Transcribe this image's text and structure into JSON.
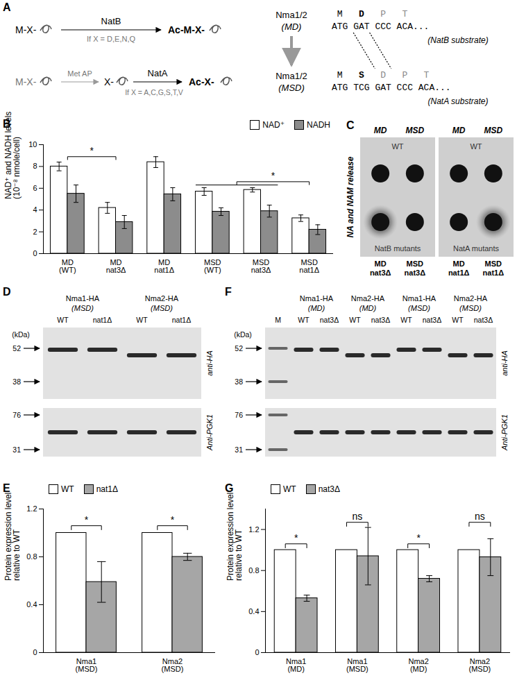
{
  "figure": {
    "A": {
      "label": "A",
      "reactions": [
        {
          "substrate": "M-X-",
          "enzyme": "NatB",
          "condition": "If X = D,E,N,Q",
          "product": "Ac-M-X-"
        },
        {
          "substrate": "M-X-",
          "processing": "Met AP",
          "intermediate": "X-",
          "enzyme": "NatA",
          "condition": "If X = A,C,G,S,T,V",
          "product": "Ac-X-"
        }
      ],
      "constructs": [
        {
          "name": "Nma1/2",
          "variant": "(MD)",
          "residues": [
            "M",
            "D",
            "P",
            "T"
          ],
          "codons": "ATG GAT CCC ACA...",
          "note": "(NatB substrate)"
        },
        {
          "name": "Nma1/2",
          "variant": "(MSD)",
          "residues": [
            "M",
            "S",
            "D",
            "P",
            "T"
          ],
          "codons": "ATG TCG GAT CCC ACA...",
          "note": "(NatA substrate)"
        }
      ]
    },
    "C": {
      "label": "C",
      "ylabel": "NA and NAM release",
      "plates": [
        {
          "columns": [
            "MD",
            "MSD"
          ],
          "top": "WT",
          "bottom": "NatB mutants",
          "bottom_labels": [
            "MD\nnat3Δ",
            "MSD\nnat3Δ"
          ],
          "halo": [
            true,
            false
          ]
        },
        {
          "columns": [
            "MD",
            "MSD"
          ],
          "top": "WT",
          "bottom": "NatA mutants",
          "bottom_labels": [
            "MD\nnat1Δ",
            "MSD\nnat1Δ"
          ],
          "halo": [
            false,
            true
          ]
        }
      ]
    },
    "D": {
      "label": "D",
      "groups": [
        {
          "name": "Nma1-HA",
          "variant": "(MSD)"
        },
        {
          "name": "Nma2-HA",
          "variant": "(MSD)"
        }
      ],
      "lanes": [
        "WT",
        "nat1Δ",
        "WT",
        "nat1Δ"
      ],
      "unit": "(kDa)",
      "markers_top": [
        52,
        38
      ],
      "markers_bottom": [
        76,
        31
      ],
      "antibody_top": "anti-HA",
      "antibody_bottom": "Anti-PGK1"
    },
    "F": {
      "label": "F",
      "marker_lane": "M",
      "groups": [
        {
          "name": "Nma1-HA",
          "variant": "(MD)"
        },
        {
          "name": "Nma2-HA",
          "variant": "(MD)"
        },
        {
          "name": "Nma1-HA",
          "variant": "(MSD)"
        },
        {
          "name": "Nma2-HA",
          "variant": "(MSD)"
        }
      ],
      "lanes": [
        "WT",
        "nat3Δ",
        "WT",
        "nat3Δ",
        "WT",
        "nat3Δ",
        "WT",
        "nat3Δ"
      ],
      "unit": "(kDa)",
      "markers_top": [
        52,
        38
      ],
      "markers_bottom": [
        76,
        31
      ],
      "antibody_top": "anti-HA",
      "antibody_bottom": "Anti-PGK1"
    }
  },
  "chart_data": [
    {
      "type": "bar",
      "title": "B",
      "ylabel": "NAD⁺ and NADH levels\n(10⁻⁸ nmole/cell)",
      "categories": [
        "MD\n(WT)",
        "MD\nnat3Δ",
        "MD\nnat1Δ",
        "MSD\n(WT)",
        "MSD\nnat3Δ",
        "MSD\nnat1Δ"
      ],
      "series": [
        {
          "name": "NAD⁺",
          "color": "#ffffff",
          "values": [
            8.0,
            4.2,
            8.4,
            5.7,
            5.85,
            3.25
          ],
          "errors": [
            0.4,
            0.5,
            0.5,
            0.35,
            0.2,
            0.3
          ]
        },
        {
          "name": "NADH",
          "color": "#8c8c8c",
          "values": [
            5.5,
            2.9,
            5.45,
            3.85,
            3.9,
            2.2
          ],
          "errors": [
            0.8,
            0.6,
            0.6,
            0.35,
            0.55,
            0.45
          ]
        }
      ],
      "ylim": [
        0,
        10
      ],
      "yticks": [
        0,
        2,
        4,
        6,
        8,
        10
      ],
      "legend": "top-right",
      "annotations": [
        {
          "text": "*",
          "left": [
            0
          ],
          "right": [
            1
          ],
          "y": 8.9
        },
        {
          "text": "*",
          "left": [
            3,
            4
          ],
          "right": [
            5
          ],
          "y": 6.6
        }
      ]
    },
    {
      "type": "bar",
      "title": "E",
      "ylabel": "Protein expression level\nrelative to WT",
      "categories": [
        "Nma1\n(MSD)",
        "Nma2\n(MSD)"
      ],
      "series": [
        {
          "name": "WT",
          "color": "#ffffff",
          "values": [
            1,
            1
          ]
        },
        {
          "name": "nat1Δ",
          "color": "#a6a6a6",
          "values": [
            0.59,
            0.8
          ],
          "errors": [
            0.17,
            0.03
          ]
        }
      ],
      "ylim": [
        0,
        1.2
      ],
      "yticks": [
        0,
        0.4,
        0.8,
        1.2
      ],
      "legend": "top-left",
      "annotations": [
        {
          "text": "*",
          "category": 0,
          "y": 1.06
        },
        {
          "text": "*",
          "category": 1,
          "y": 1.06
        }
      ]
    },
    {
      "type": "bar",
      "title": "G",
      "ylabel": "Protein expression level\nrelative to WT",
      "categories": [
        "Nma1\n(MD)",
        "Nma1\n(MSD)",
        "Nma2\n(MD)",
        "Nma2\n(MSD)"
      ],
      "series": [
        {
          "name": "WT",
          "color": "#ffffff",
          "values": [
            1,
            1,
            1,
            1
          ]
        },
        {
          "name": "nat3Δ",
          "color": "#a6a6a6",
          "values": [
            0.53,
            0.94,
            0.72,
            0.93
          ],
          "errors": [
            0.03,
            0.28,
            0.03,
            0.18
          ]
        }
      ],
      "ylim": [
        0,
        1.4
      ],
      "yticks": [
        0,
        0.4,
        0.8,
        1.2
      ],
      "legend": "top-left",
      "annotations": [
        {
          "text": "*",
          "category": 0,
          "y": 1.06
        },
        {
          "text": "ns",
          "category": 1,
          "y": 1.27
        },
        {
          "text": "*",
          "category": 2,
          "y": 1.06
        },
        {
          "text": "ns",
          "category": 3,
          "y": 1.27
        }
      ]
    }
  ]
}
